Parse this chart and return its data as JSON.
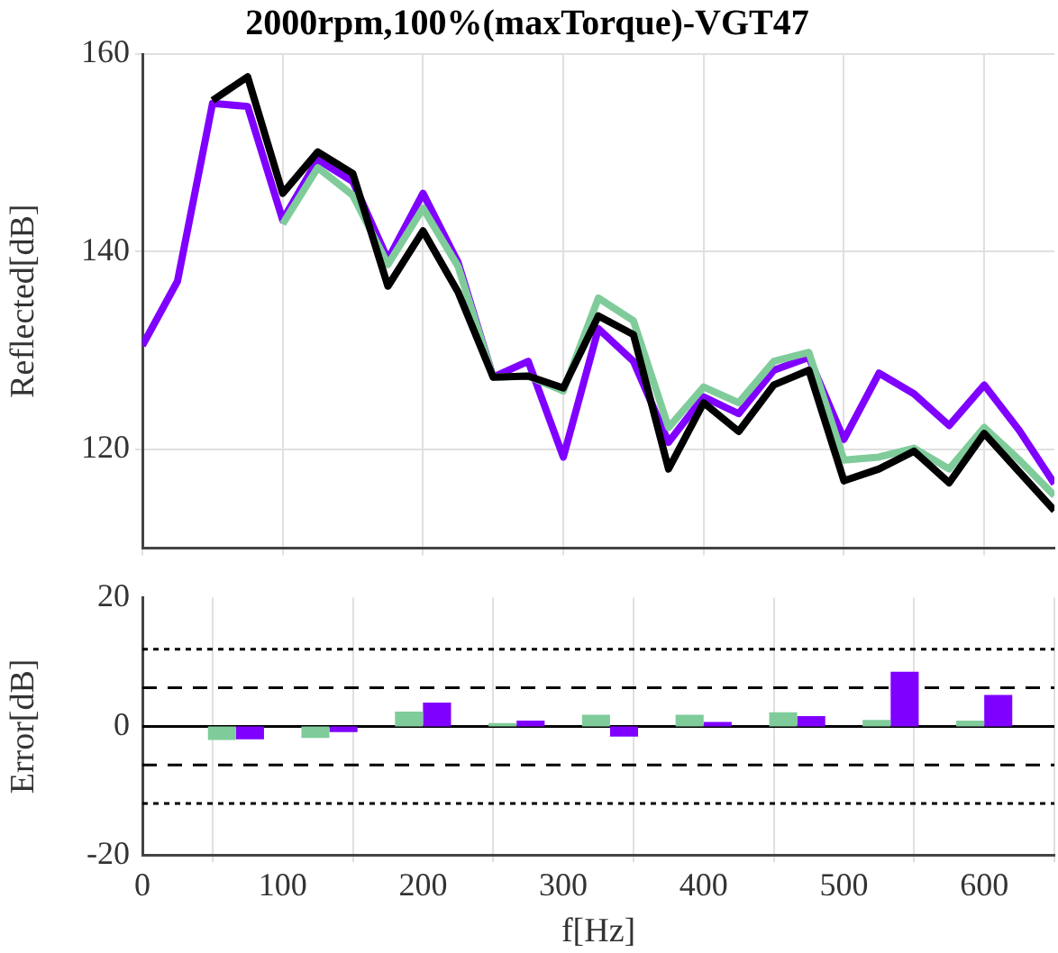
{
  "chart_data": [
    {
      "type": "line",
      "title": "2000rpm,100%(maxTorque)-VGT47",
      "ylabel": "Reflected[dB]",
      "x": [
        0,
        25,
        50,
        75,
        100,
        125,
        150,
        175,
        200,
        225,
        250,
        275,
        300,
        325,
        350,
        375,
        400,
        425,
        450,
        475,
        500,
        525,
        550,
        575,
        600,
        625,
        650
      ],
      "series": [
        {
          "color": "#000000",
          "values": [
            null,
            null,
            155.3,
            157.7,
            145.9,
            150.1,
            147.9,
            136.5,
            142.1,
            135.9,
            127.3,
            127.4,
            126.2,
            133.5,
            131.6,
            118.0,
            124.7,
            121.8,
            126.5,
            128.0,
            116.8,
            118.0,
            119.8,
            116.6,
            121.6,
            117.7,
            113.8
          ]
        },
        {
          "color": "#7fcc9a",
          "values": [
            null,
            null,
            null,
            null,
            142.8,
            148.5,
            145.7,
            138.7,
            144.4,
            138.5,
            127.3,
            127.4,
            125.9,
            135.3,
            133.0,
            122.2,
            126.3,
            124.7,
            128.9,
            129.8,
            118.9,
            119.2,
            120.1,
            118.0,
            122.2,
            118.9,
            115.3
          ]
        },
        {
          "color": "#8000ff",
          "values": [
            130.5,
            137.0,
            155.0,
            154.7,
            143.2,
            149.3,
            147.1,
            139.2,
            145.9,
            138.9,
            127.3,
            128.9,
            119.2,
            132.2,
            128.9,
            120.7,
            125.3,
            123.6,
            128.0,
            129.3,
            121.0,
            127.7,
            125.6,
            122.4,
            126.5,
            121.9,
            116.5
          ]
        }
      ],
      "xlim": [
        0,
        650
      ],
      "xticks": [
        0,
        100,
        200,
        300,
        400,
        500,
        600
      ],
      "ylim": [
        110,
        160
      ],
      "yticks": [
        120,
        140,
        160
      ],
      "grid": true,
      "legend": false,
      "tick_labels": "y",
      "line_style": "solid",
      "marker": "none"
    },
    {
      "type": "bar",
      "xlabel": "f[Hz]",
      "ylabel": "Error[dB]",
      "x": [
        66.7,
        133.3,
        200,
        266.7,
        333.3,
        400,
        466.7,
        533.3,
        600
      ],
      "series": [
        {
          "color": "#7fcc9a",
          "values": [
            -2.1,
            -1.8,
            2.3,
            0.5,
            1.8,
            1.8,
            2.2,
            1.0,
            0.9
          ]
        },
        {
          "color": "#8000ff",
          "values": [
            -2.0,
            -0.9,
            3.7,
            0.9,
            -1.6,
            0.7,
            1.6,
            8.5,
            4.9
          ]
        }
      ],
      "xlim": [
        0,
        650
      ],
      "xticks": [
        0,
        100,
        200,
        300,
        400,
        500,
        600
      ],
      "ylim": [
        -20,
        20
      ],
      "yticks": [
        -20,
        0,
        20
      ],
      "ref_lines": [
        {
          "axis": "y",
          "value": 12,
          "color": "#000000",
          "line_style": "dotted"
        },
        {
          "axis": "y",
          "value": 6,
          "color": "#000000",
          "line_style": "dashed"
        },
        {
          "axis": "y",
          "value": 0,
          "color": "#000000",
          "line_style": "solid"
        },
        {
          "axis": "y",
          "value": -6,
          "color": "#000000",
          "line_style": "dashed"
        },
        {
          "axis": "y",
          "value": -12,
          "color": "#000000",
          "line_style": "dotted"
        }
      ],
      "grid": "x",
      "legend": false
    }
  ]
}
